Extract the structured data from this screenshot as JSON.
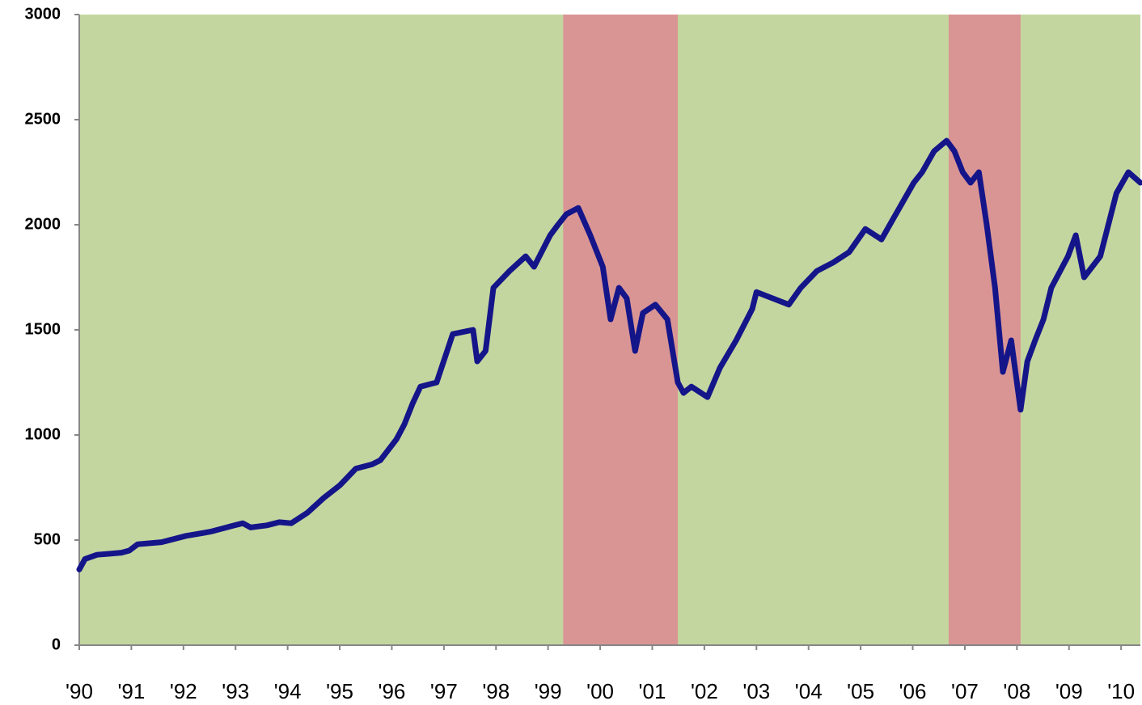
{
  "chart_data": {
    "type": "line",
    "xlim": [
      1990,
      2010.37
    ],
    "ylim": [
      0,
      3000
    ],
    "yticks": [
      0,
      500,
      1000,
      1500,
      2000,
      2500,
      3000
    ],
    "xticks": [
      {
        "value": 1990,
        "label": "'90"
      },
      {
        "value": 1991,
        "label": "'91"
      },
      {
        "value": 1992,
        "label": "'92"
      },
      {
        "value": 1993,
        "label": "'93"
      },
      {
        "value": 1994,
        "label": "'94"
      },
      {
        "value": 1995,
        "label": "'95"
      },
      {
        "value": 1996,
        "label": "'96"
      },
      {
        "value": 1997,
        "label": "'97"
      },
      {
        "value": 1998,
        "label": "'98"
      },
      {
        "value": 1999,
        "label": "'99"
      },
      {
        "value": 2000,
        "label": "'00"
      },
      {
        "value": 2001,
        "label": "'01"
      },
      {
        "value": 2002,
        "label": "'02"
      },
      {
        "value": 2003,
        "label": "'03"
      },
      {
        "value": 2004,
        "label": "'04"
      },
      {
        "value": 2005,
        "label": "'05"
      },
      {
        "value": 2006,
        "label": "'06"
      },
      {
        "value": 2007,
        "label": "'07"
      },
      {
        "value": 2008,
        "label": "'08"
      },
      {
        "value": 2009,
        "label": "'09"
      },
      {
        "value": 2010,
        "label": "'10"
      }
    ],
    "background_color": "#c4d69f",
    "bands": [
      {
        "start": 1999.29,
        "end": 2001.49,
        "color": "#d99594"
      },
      {
        "start": 2006.69,
        "end": 2008.07,
        "color": "#d99594"
      }
    ],
    "x": [
      1990,
      1990.11,
      1990.34,
      1990.81,
      1990.96,
      1991.12,
      1991.58,
      1992.05,
      1992.52,
      1992.98,
      1993.14,
      1993.29,
      1993.6,
      1993.84,
      1994.07,
      1994.38,
      1994.69,
      1995.0,
      1995.31,
      1995.62,
      1995.78,
      1996.09,
      1996.24,
      1996.4,
      1996.55,
      1996.86,
      1997.17,
      1997.56,
      1997.64,
      1997.8,
      1997.95,
      1998.26,
      1998.57,
      1998.73,
      1999.04,
      1999.19,
      1999.35,
      1999.58,
      1999.81,
      2000.05,
      2000.2,
      2000.36,
      2000.51,
      2000.67,
      2000.82,
      2001.06,
      2001.29,
      2001.49,
      2001.6,
      2001.75,
      2002.06,
      2002.3,
      2002.61,
      2002.92,
      2003.0,
      2003.31,
      2003.62,
      2003.85,
      2004.16,
      2004.47,
      2004.78,
      2005.09,
      2005.4,
      2005.56,
      2005.79,
      2006.02,
      2006.18,
      2006.41,
      2006.65,
      2006.8,
      2006.96,
      2007.11,
      2007.27,
      2007.42,
      2007.58,
      2007.73,
      2007.89,
      2008.07,
      2008.2,
      2008.35,
      2008.51,
      2008.66,
      2008.98,
      2009.13,
      2009.29,
      2009.6,
      2009.91,
      2010.14,
      2010.37
    ],
    "series": [
      {
        "color": "#15158a",
        "values": [
          360,
          410,
          430,
          440,
          450,
          480,
          490,
          520,
          540,
          570,
          580,
          560,
          570,
          585,
          580,
          630,
          700,
          760,
          840,
          860,
          880,
          980,
          1050,
          1150,
          1230,
          1250,
          1480,
          1500,
          1350,
          1400,
          1700,
          1780,
          1850,
          1800,
          1950,
          2000,
          2050,
          2080,
          1950,
          1800,
          1550,
          1700,
          1650,
          1400,
          1580,
          1620,
          1550,
          1250,
          1200,
          1230,
          1180,
          1320,
          1450,
          1600,
          1680,
          1650,
          1620,
          1700,
          1780,
          1820,
          1870,
          1980,
          1930,
          2000,
          2100,
          2200,
          2250,
          2350,
          2400,
          2350,
          2250,
          2200,
          2250,
          2000,
          1700,
          1300,
          1450,
          1120,
          1350,
          1450,
          1550,
          1700,
          1850,
          1950,
          1750,
          1850,
          2150,
          2250,
          2200
        ]
      }
    ]
  }
}
